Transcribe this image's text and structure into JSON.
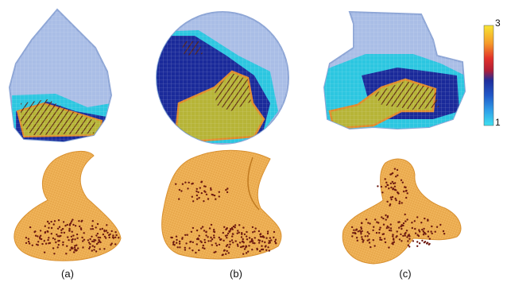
{
  "panels": [
    {
      "id": "a",
      "label": "(a)"
    },
    {
      "id": "b",
      "label": "(b)"
    },
    {
      "id": "c",
      "label": "(c)"
    }
  ],
  "colorbar": {
    "max_label": "3",
    "min_label": "1",
    "colors": [
      "#f7e534",
      "#f59a2a",
      "#e2312a",
      "#b01e37",
      "#1f2d9c",
      "#2058c8",
      "#2f9fe8",
      "#3fe0f0"
    ]
  },
  "palette": {
    "shell": "#a9bde6",
    "shell_edge": "#8ea6d6",
    "navy": "#1a2a9a",
    "cyan": "#2cc6e0",
    "olive": "#b6b437",
    "orange_edge": "#e08a2a",
    "hatch": "#5a2410",
    "mesh": "#f0b45a",
    "mesh_line": "#d89030",
    "points": "#6e1a10"
  }
}
